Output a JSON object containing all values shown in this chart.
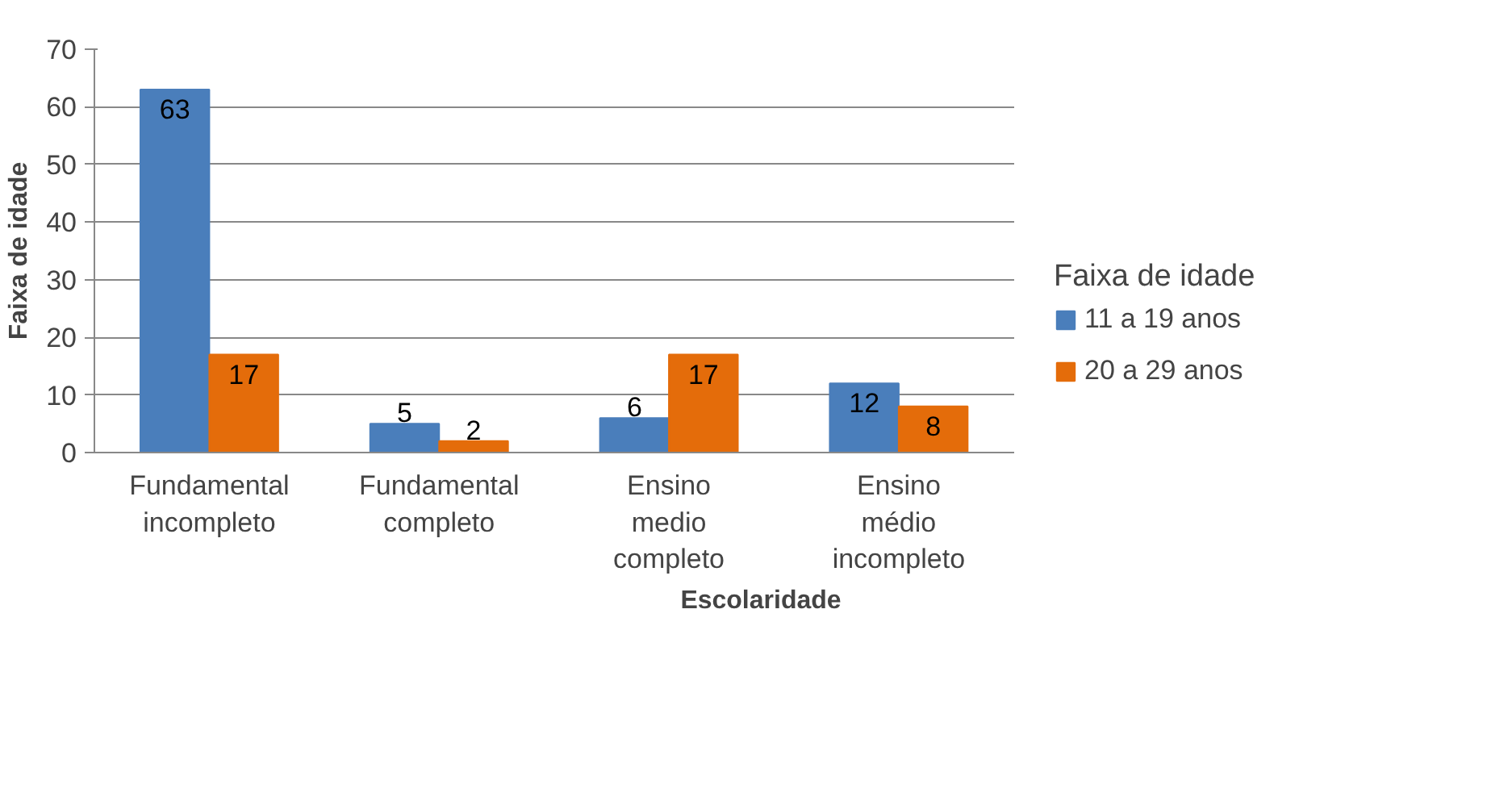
{
  "chart_data": {
    "type": "bar",
    "xlabel": "Escolaridade",
    "ylabel": "Faixa de idade",
    "legend_title": "Faixa de idade",
    "categories": [
      "Fundamental\nincompleto",
      "Fundamental\ncompleto",
      "Ensino\nmedio\ncompleto",
      "Ensino\nmédio\nincompleto"
    ],
    "series": [
      {
        "name": "11 a 19 anos",
        "color": "#4a7ebb",
        "values": [
          63,
          5,
          6,
          12
        ]
      },
      {
        "name": "20 a 29 anos",
        "color": "#e46c0a",
        "values": [
          17,
          2,
          17,
          8
        ]
      }
    ],
    "ylim": [
      0,
      70
    ],
    "yticks": [
      0,
      10,
      20,
      30,
      40,
      50,
      60,
      70
    ],
    "grid": "y",
    "legend": "right",
    "data_labels": true
  }
}
